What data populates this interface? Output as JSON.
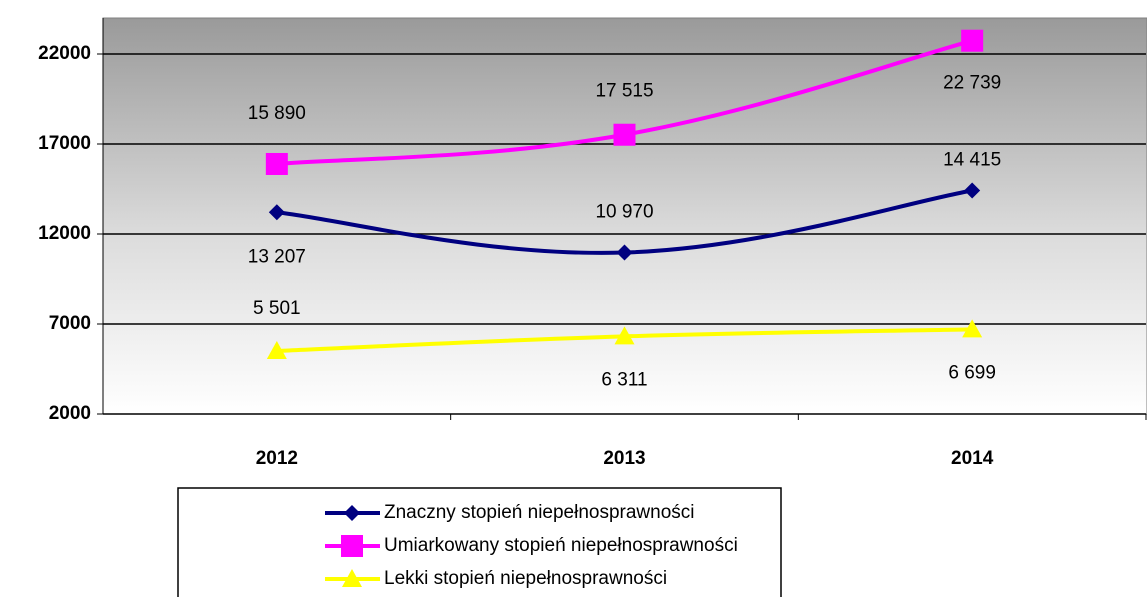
{
  "chart_data": {
    "type": "line",
    "categories": [
      "2012",
      "2013",
      "2014"
    ],
    "series": [
      {
        "name": "Znaczny stopień niepełnosprawności",
        "color": "#000080",
        "marker": "diamond",
        "values": [
          13207,
          10970,
          14415
        ],
        "value_labels": [
          "13 207",
          "10 970",
          "14 415"
        ]
      },
      {
        "name": "Umiarkowany stopień niepełnosprawności",
        "color": "#ff00ff",
        "marker": "square",
        "values": [
          15890,
          17515,
          22739
        ],
        "value_labels": [
          "15 890",
          "17 515",
          "22 739"
        ]
      },
      {
        "name": "Lekki stopień niepełnosprawności",
        "color": "#ffff00",
        "marker": "triangle",
        "values": [
          5501,
          6311,
          6699
        ],
        "value_labels": [
          "5 501",
          "6 311",
          "6 699"
        ]
      }
    ],
    "ylim": [
      2000,
      24000
    ],
    "yticks": [
      2000,
      7000,
      12000,
      17000,
      22000
    ],
    "grid": true
  }
}
